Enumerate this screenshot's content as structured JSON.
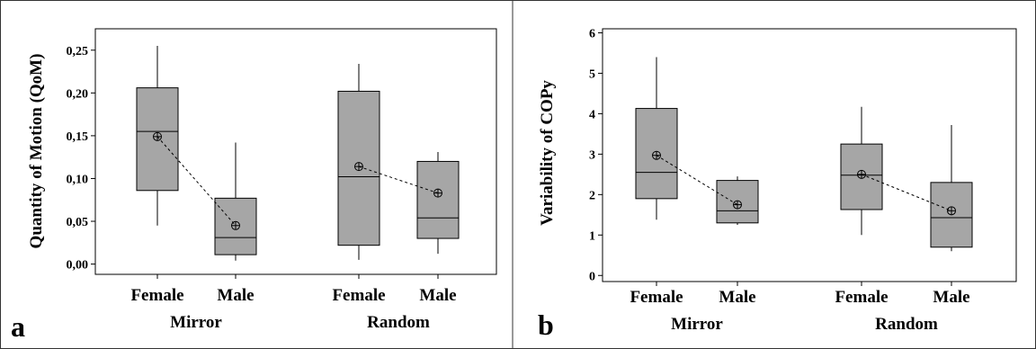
{
  "chart_data": [
    {
      "type": "box",
      "panel_label": "a",
      "ylabel": "Quantity of Motion (QoM)",
      "ylim": [
        -0.012,
        0.275
      ],
      "yticks": [
        "0,00",
        "0,05",
        "0,10",
        "0,15",
        "0,20",
        "0,25"
      ],
      "ytick_values": [
        0,
        0.05,
        0.1,
        0.15,
        0.2,
        0.25
      ],
      "groups": [
        "Mirror",
        "Random"
      ],
      "categories": [
        "Female",
        "Male",
        "Female",
        "Male"
      ],
      "boxes": [
        {
          "group": "Mirror",
          "category": "Female",
          "min": 0.045,
          "q1": 0.086,
          "median": 0.155,
          "q3": 0.206,
          "max": 0.255,
          "mean": 0.149
        },
        {
          "group": "Mirror",
          "category": "Male",
          "min": 0.004,
          "q1": 0.011,
          "median": 0.031,
          "q3": 0.077,
          "max": 0.142,
          "mean": 0.045
        },
        {
          "group": "Random",
          "category": "Female",
          "min": 0.005,
          "q1": 0.022,
          "median": 0.102,
          "q3": 0.202,
          "max": 0.234,
          "mean": 0.114
        },
        {
          "group": "Random",
          "category": "Male",
          "min": 0.012,
          "q1": 0.03,
          "median": 0.054,
          "q3": 0.12,
          "max": 0.131,
          "mean": 0.083
        }
      ],
      "box_color": "#a6a6a6",
      "grid": false
    },
    {
      "type": "box",
      "panel_label": "b",
      "ylabel": "Variability of COPy",
      "ylim": [
        -0.15,
        6.1
      ],
      "yticks": [
        "0",
        "1",
        "2",
        "3",
        "4",
        "5",
        "6"
      ],
      "ytick_values": [
        0,
        1,
        2,
        3,
        4,
        5,
        6
      ],
      "groups": [
        "Mirror",
        "Random"
      ],
      "categories": [
        "Female",
        "Male",
        "Female",
        "Male"
      ],
      "boxes": [
        {
          "group": "Mirror",
          "category": "Female",
          "min": 1.38,
          "q1": 1.9,
          "median": 2.55,
          "q3": 4.13,
          "max": 5.4,
          "mean": 2.97
        },
        {
          "group": "Mirror",
          "category": "Male",
          "min": 1.25,
          "q1": 1.3,
          "median": 1.6,
          "q3": 2.35,
          "max": 2.45,
          "mean": 1.75
        },
        {
          "group": "Random",
          "category": "Female",
          "min": 1.0,
          "q1": 1.63,
          "median": 2.48,
          "q3": 3.25,
          "max": 4.17,
          "mean": 2.5
        },
        {
          "group": "Random",
          "category": "Male",
          "min": 0.6,
          "q1": 0.7,
          "median": 1.43,
          "q3": 2.3,
          "max": 3.72,
          "mean": 1.6
        }
      ],
      "box_color": "#a6a6a6",
      "grid": false
    }
  ]
}
